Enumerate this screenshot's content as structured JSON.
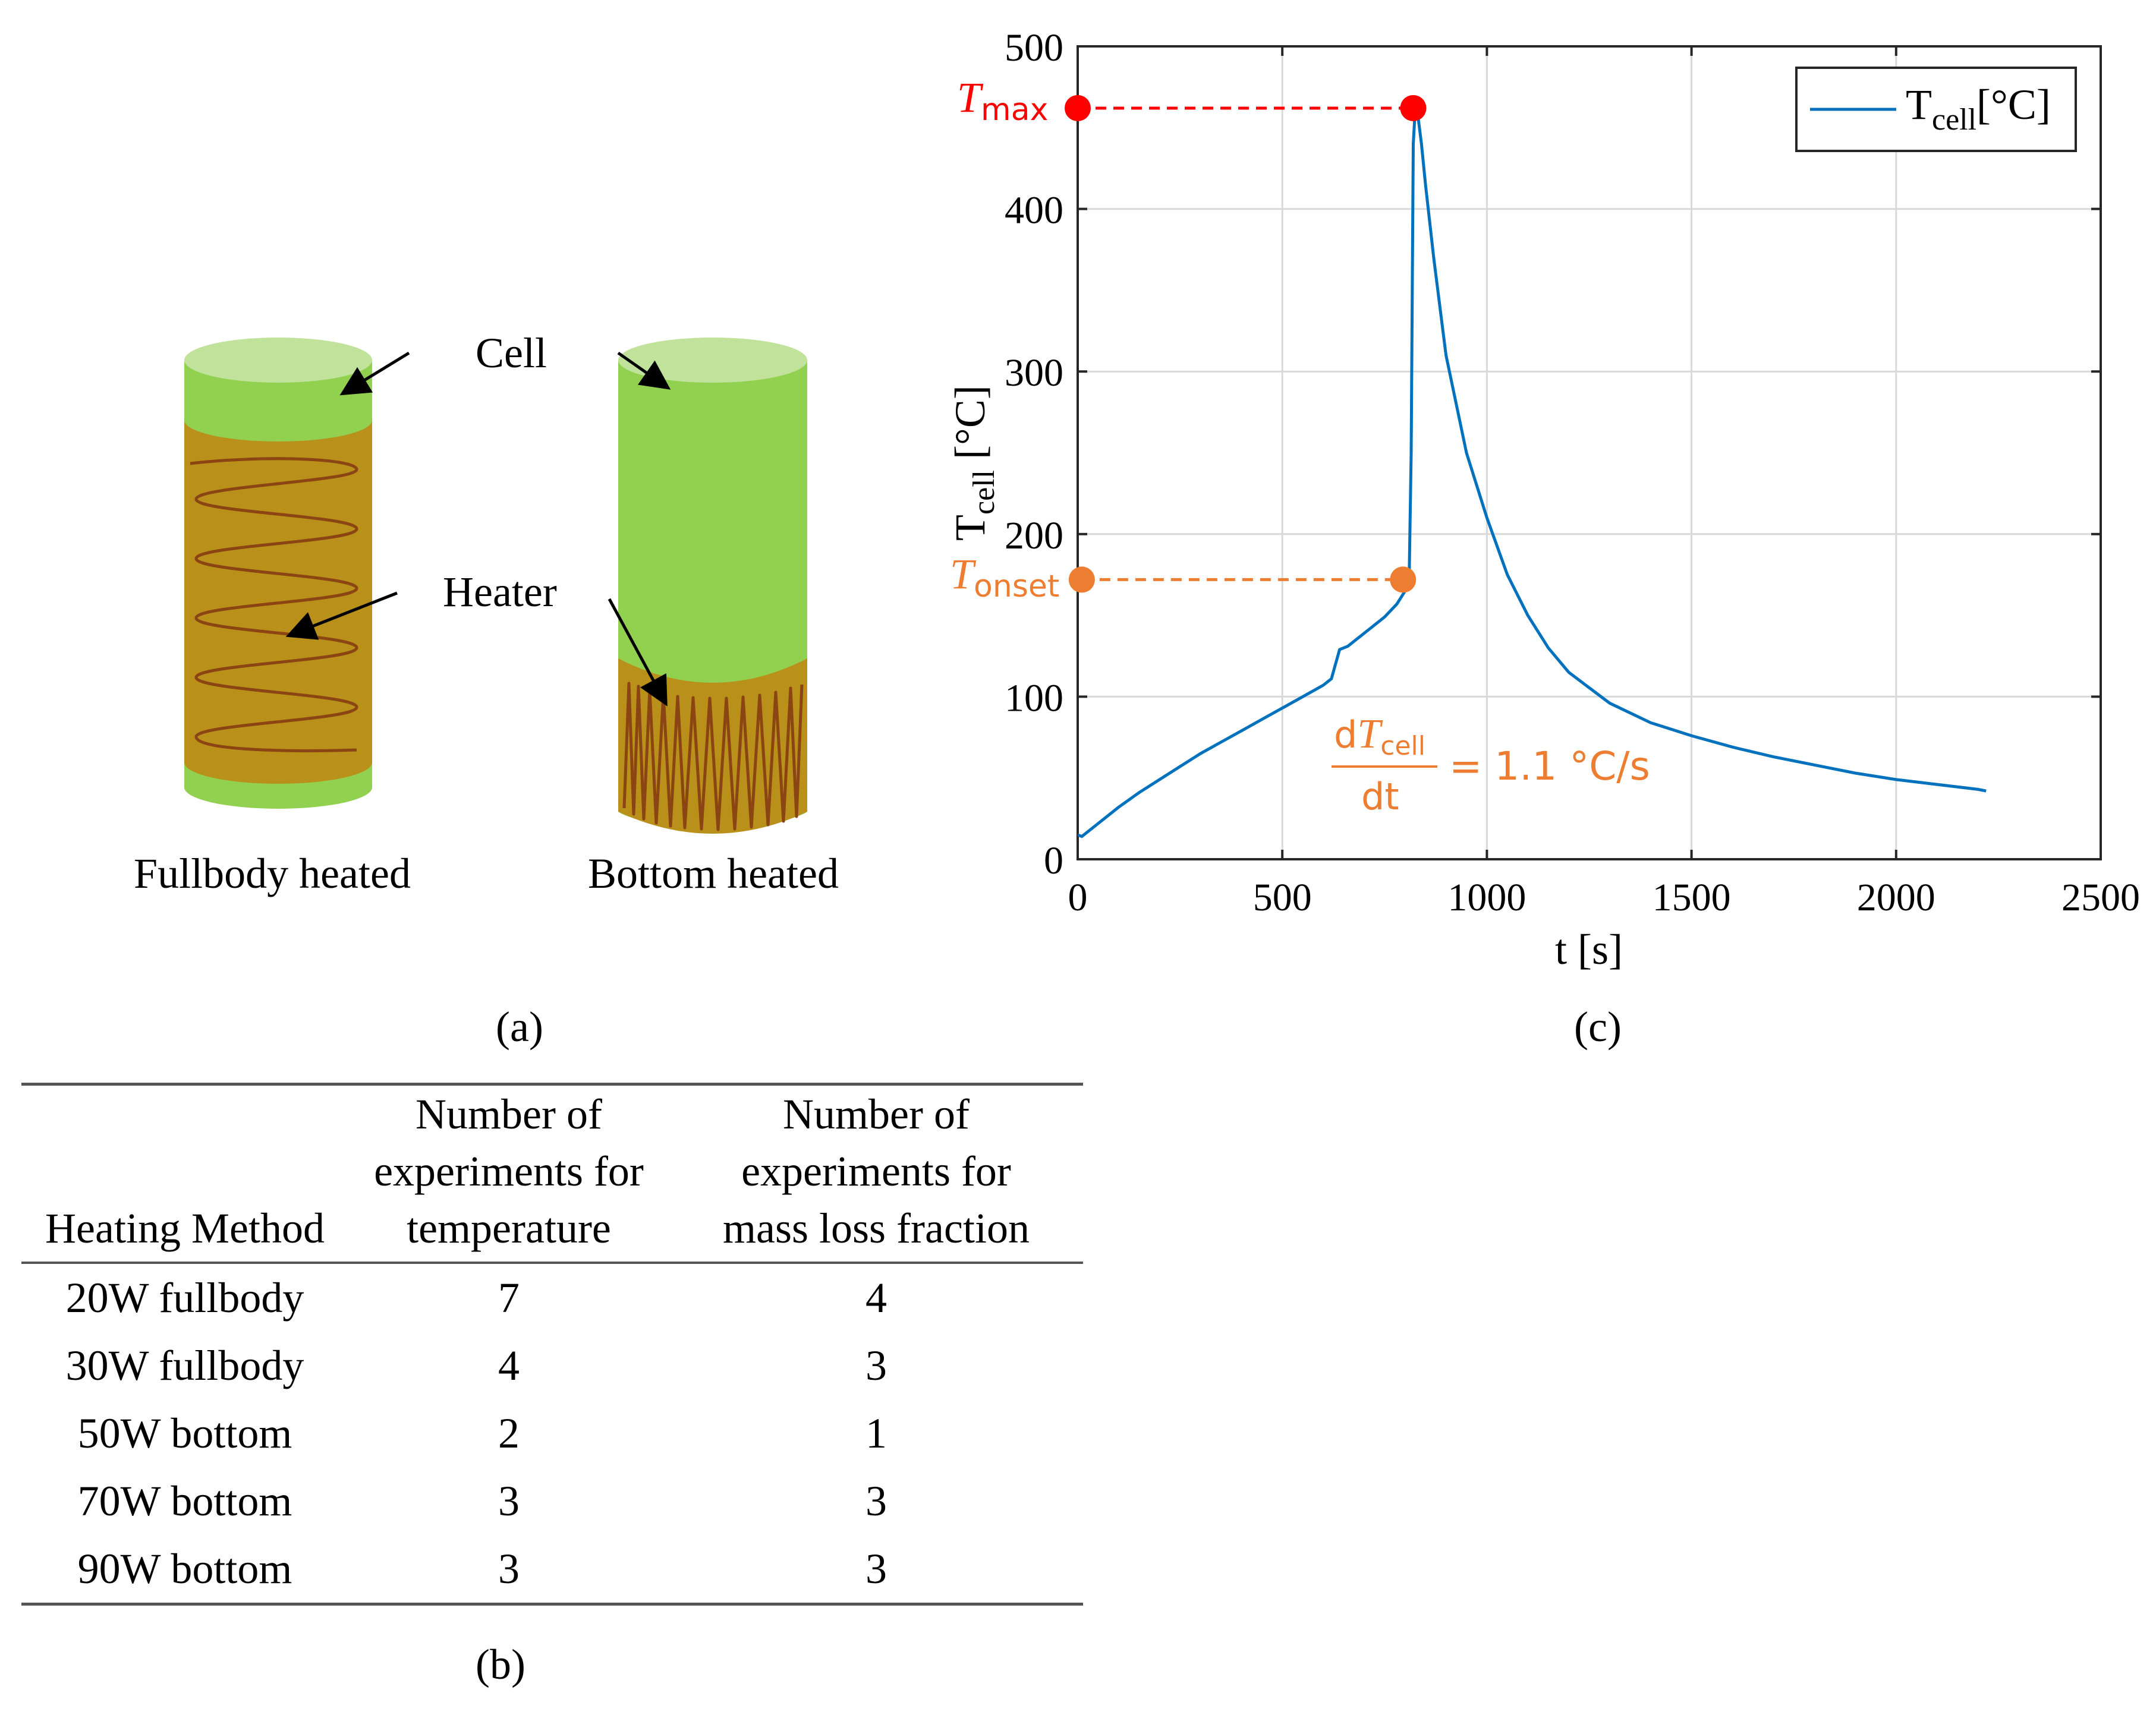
{
  "panel_a": {
    "cell_label": "Cell",
    "heater_label": "Heater",
    "left_caption": "Fullbody heated",
    "right_caption": "Bottom heated",
    "caption": "(a)",
    "colors": {
      "cell_green": "#92d050",
      "cell_top": "#c0e29a",
      "heater": "#b8901a",
      "coil": "#8b4513"
    }
  },
  "panel_b": {
    "caption": "(b)",
    "headers": [
      [
        "Heating Method"
      ],
      [
        "Number of",
        "experiments for",
        "temperature"
      ],
      [
        "Number of",
        "experiments for",
        "mass loss fraction"
      ]
    ],
    "rows": [
      [
        "20W fullbody",
        "7",
        "4"
      ],
      [
        "30W fullbody",
        "4",
        "3"
      ],
      [
        "50W bottom",
        "2",
        "1"
      ],
      [
        "70W bottom",
        "3",
        "3"
      ],
      [
        "90W bottom",
        "3",
        "3"
      ]
    ]
  },
  "panel_c": {
    "caption": "(c)",
    "annotations": {
      "tmax_T": "T",
      "tmax_sub": "max",
      "tonset_T": "T",
      "tonset_sub": "onset",
      "rate_num_d": "d",
      "rate_num_T": "T",
      "rate_num_sub": "cell",
      "rate_den": "dt",
      "rate_value": "= 1.1 °C/s"
    },
    "colors": {
      "line": "#0072bd",
      "tmax": "#ff0000",
      "tonset": "#ed7d31"
    }
  },
  "chart_data": {
    "type": "line",
    "xlabel": "t [s]",
    "ylabel_main": "T",
    "ylabel_sub": "cell",
    "ylabel_unit": " [°C]",
    "xlim": [
      0,
      2500
    ],
    "ylim": [
      0,
      500
    ],
    "xticks": [
      0,
      500,
      1000,
      1500,
      2000,
      2500
    ],
    "yticks": [
      0,
      100,
      200,
      300,
      400,
      500
    ],
    "grid": true,
    "legend_position": "top-right",
    "legend": {
      "main": "T",
      "sub": "cell",
      "unit": "[°C]"
    },
    "series": [
      {
        "x": [
          0,
          10,
          20,
          50,
          100,
          150,
          200,
          250,
          300,
          350,
          400,
          450,
          500,
          550,
          600,
          620,
          640,
          660,
          700,
          750,
          780,
          800,
          810,
          815,
          820,
          825,
          830,
          840,
          850,
          870,
          900,
          950,
          1000,
          1050,
          1100,
          1150,
          1200,
          1300,
          1400,
          1500,
          1600,
          1700,
          1800,
          1900,
          2000,
          2100,
          2200,
          2220
        ],
        "y": [
          15,
          14,
          16,
          22,
          32,
          41,
          49,
          57,
          65,
          72,
          79,
          86,
          93,
          100,
          107,
          111,
          129,
          131,
          139,
          149,
          157,
          165,
          172,
          250,
          440,
          462,
          460,
          440,
          415,
          370,
          310,
          250,
          210,
          175,
          150,
          130,
          115,
          96,
          84,
          76,
          69,
          63,
          58,
          53,
          49,
          46,
          43,
          42
        ]
      }
    ],
    "markers": [
      {
        "name": "T_max",
        "x": 820,
        "y": 462,
        "ref_x": 0
      },
      {
        "name": "T_onset",
        "x": 795,
        "y": 172,
        "ref_x": 10
      }
    ]
  }
}
